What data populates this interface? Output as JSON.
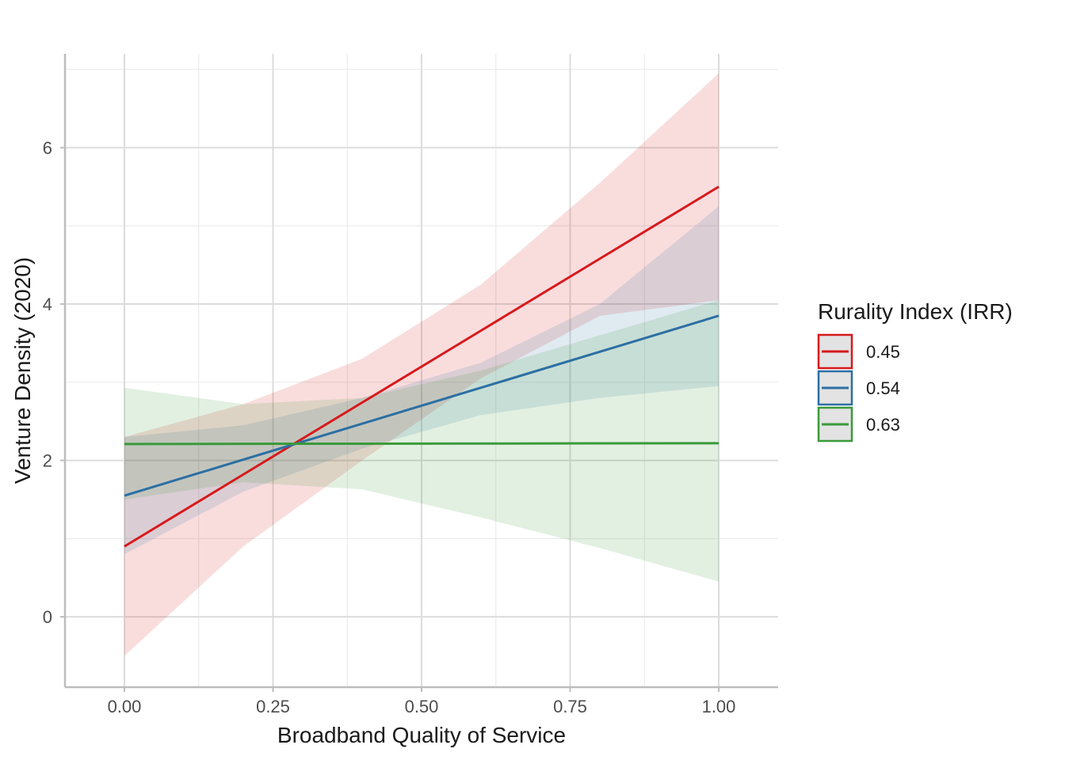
{
  "chart_data": {
    "type": "line",
    "title": "",
    "xlabel": "Broadband Quality of Service",
    "ylabel": "Venture Density (2020)",
    "xlim": [
      -0.1,
      1.1
    ],
    "ylim": [
      -0.9,
      7.2
    ],
    "x_ticks": [
      0.0,
      0.25,
      0.5,
      0.75,
      1.0
    ],
    "x_tick_labels": [
      "0.00",
      "0.25",
      "0.50",
      "0.75",
      "1.00"
    ],
    "y_ticks": [
      0,
      2,
      4,
      6
    ],
    "y_tick_labels": [
      "0",
      "2",
      "4",
      "6"
    ],
    "grid": true,
    "legend": {
      "title": "Rurality Index (IRR)",
      "position": "right"
    },
    "series": [
      {
        "name": "0.45",
        "color": "#d7191c",
        "x": [
          0,
          0.2,
          0.4,
          0.6,
          0.8,
          1.0
        ],
        "y": [
          0.9,
          1.82,
          2.74,
          3.66,
          4.58,
          5.5
        ],
        "lower": [
          -0.5,
          0.9,
          2.0,
          3.05,
          3.85,
          4.05
        ],
        "upper": [
          2.3,
          2.72,
          3.3,
          4.25,
          5.55,
          6.95
        ]
      },
      {
        "name": "0.54",
        "color": "#2c6fa3",
        "x": [
          0,
          0.2,
          0.4,
          0.6,
          0.8,
          1.0
        ],
        "y": [
          1.55,
          2.01,
          2.47,
          2.93,
          3.39,
          3.85
        ],
        "lower": [
          0.8,
          1.6,
          2.15,
          2.58,
          2.8,
          2.95
        ],
        "upper": [
          2.3,
          2.45,
          2.8,
          3.25,
          4.0,
          5.25
        ]
      },
      {
        "name": "0.63",
        "color": "#3a9a3a",
        "x": [
          0,
          0.2,
          0.4,
          0.6,
          0.8,
          1.0
        ],
        "y": [
          2.21,
          2.212,
          2.214,
          2.216,
          2.218,
          2.22
        ],
        "lower": [
          1.5,
          1.72,
          1.63,
          1.27,
          0.88,
          0.45
        ],
        "upper": [
          2.93,
          2.72,
          2.8,
          3.15,
          3.6,
          4.05
        ]
      }
    ]
  }
}
